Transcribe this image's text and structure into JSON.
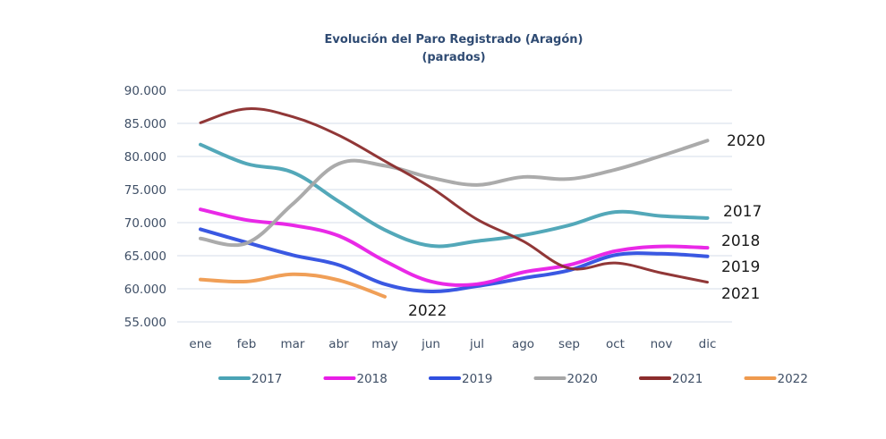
{
  "chart_data": {
    "type": "line",
    "title": "Evolución del Paro Registrado (Aragón)",
    "subtitle": "(parados)",
    "xlabel": "",
    "ylabel": "",
    "x": [
      "ene",
      "feb",
      "mar",
      "abr",
      "may",
      "jun",
      "jul",
      "ago",
      "sep",
      "oct",
      "nov",
      "dic"
    ],
    "ylim": [
      55000,
      90000
    ],
    "yticks": [
      55000,
      60000,
      65000,
      70000,
      75000,
      80000,
      85000,
      90000
    ],
    "ytick_labels": [
      "55.000",
      "60.000",
      "65.000",
      "70.000",
      "75.000",
      "80.000",
      "85.000",
      "90.000"
    ],
    "grid": true,
    "legend_position": "bottom",
    "series": [
      {
        "name": "2017",
        "color": "#4aa3b5",
        "end_label": "2017",
        "values": [
          81800,
          78900,
          77600,
          73200,
          68900,
          66500,
          67200,
          68100,
          69600,
          71600,
          71000,
          70700
        ]
      },
      {
        "name": "2018",
        "color": "#e81ee6",
        "end_label": "2018",
        "values": [
          72000,
          70400,
          69600,
          68000,
          64200,
          61100,
          60700,
          62500,
          63600,
          65700,
          66400,
          66200
        ]
      },
      {
        "name": "2019",
        "color": "#2f4fe0",
        "end_label": "2019",
        "values": [
          69000,
          67000,
          65100,
          63600,
          60700,
          59600,
          60400,
          61600,
          62800,
          65100,
          65300,
          64900
        ]
      },
      {
        "name": "2020",
        "color": "#a6a6a6",
        "end_label": "2020",
        "values": [
          67600,
          66900,
          72800,
          78900,
          78600,
          76800,
          75700,
          76900,
          76600,
          78000,
          80100,
          82400
        ]
      },
      {
        "name": "2021",
        "color": "#8b2c2c",
        "end_label": "2021",
        "values": [
          85100,
          87200,
          86000,
          83200,
          79300,
          75300,
          70500,
          67200,
          63100,
          63900,
          62400,
          61000
        ]
      },
      {
        "name": "2022",
        "color": "#ef9a4e",
        "end_label": "2022",
        "values": [
          61400,
          61100,
          62200,
          61300,
          58800
        ]
      }
    ]
  }
}
